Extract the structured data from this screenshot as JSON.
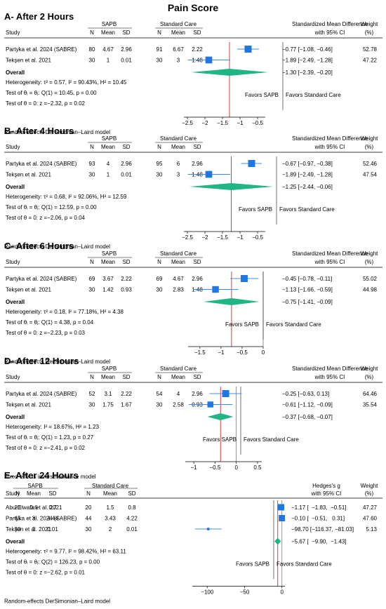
{
  "title": "Pain Score",
  "colors": {
    "square": "#1f77e0",
    "diamond": "#1fb584",
    "refline": "#d62728",
    "ci": "#3b8ee8",
    "divider": "#333333"
  },
  "chart_data": [
    {
      "type": "forest",
      "panel_title": "A- After 2 Hours",
      "group1_label": "SAPB",
      "group2_label": "Standard Care",
      "columns": {
        "study": "Study",
        "n": "N",
        "mean": "Mean",
        "sd": "SD",
        "effect1": "Standardized Mean Difference",
        "effect2": "with 95% CI",
        "weight1": "Weight",
        "weight2": "(%)"
      },
      "studies": [
        {
          "name": "Partyka et al. 2024 (SABRE)",
          "n1": "80",
          "m1": "4.67",
          "sd1": "2.96",
          "n2": "91",
          "m2": "6.67",
          "sd2": "2.22",
          "est": -0.77,
          "lo": -1.08,
          "hi": -0.46,
          "ci_text": "−0.77 [−1.08, −0.46]",
          "weight": "52.78"
        },
        {
          "name": "Tekşen et al. 2021",
          "n1": "30",
          "m1": "1",
          "sd1": "0.01",
          "n2": "30",
          "m2": "3",
          "sd2": "1.48",
          "est": -1.89,
          "lo": -2.49,
          "hi": -1.28,
          "ci_text": "−1.89 [−2.49, −1.28]",
          "weight": "47.22"
        }
      ],
      "overall": {
        "label": "Overall",
        "est": -1.3,
        "lo": -2.39,
        "hi": -0.2,
        "ci_text": "−1.30 [−2.39, −0.20]"
      },
      "stats": [
        "Heterogeneity: τ² = 0.57, I² = 90.43%, H² = 10.45",
        "Test of θᵢ = θⱼ: Q(1) = 10.45, p = 0.00",
        "Test of θ = 0: z =−2.32, p = 0.02"
      ],
      "favors_left": "Favors SAPB",
      "favors_right": "Favors Standard Care",
      "xticks": [
        -2.5,
        -2,
        -1.5,
        -1,
        -0.5
      ],
      "xtick_labels": [
        "−2.5",
        "−2",
        "−1.5",
        "−1",
        "−0.5"
      ],
      "xlim": [
        -2.6,
        -0.28
      ],
      "null_line": null,
      "model": "Random-effects DerSimonian–Laird model"
    },
    {
      "type": "forest",
      "panel_title": "B- After 4 Hours",
      "group1_label": "SAPB",
      "group2_label": "Standard Care",
      "columns": {
        "study": "Study",
        "n": "N",
        "mean": "Mean",
        "sd": "SD",
        "effect1": "Standardized Mean Difference",
        "effect2": "with 95% CI",
        "weight1": "Weight",
        "weight2": "(%)"
      },
      "studies": [
        {
          "name": "Partyka et al. 2024 (SABRE)",
          "n1": "93",
          "m1": "4",
          "sd1": "2.96",
          "n2": "95",
          "m2": "6",
          "sd2": "2.96",
          "est": -0.67,
          "lo": -0.97,
          "hi": -0.38,
          "ci_text": "−0.67 [−0.97, −0.38]",
          "weight": "52.46"
        },
        {
          "name": "Tekşen et al. 2021",
          "n1": "30",
          "m1": "1",
          "sd1": "0.01",
          "n2": "30",
          "m2": "3",
          "sd2": "1.48",
          "est": -1.89,
          "lo": -2.49,
          "hi": -1.28,
          "ci_text": "−1.89 [−2.49, −1.28]",
          "weight": "47.54"
        }
      ],
      "overall": {
        "label": "Overall",
        "est": -1.25,
        "lo": -2.44,
        "hi": -0.06,
        "ci_text": "−1.25 [−2.44, −0.06]"
      },
      "stats": [
        "Heterogeneity: τ² = 0.68, I² = 92.06%, H² = 12.59",
        "Test of θᵢ = θⱼ: Q(1) = 12.59, p = 0.00",
        "Test of θ = 0: z =−2.06, p = 0.04"
      ],
      "favors_left": "Favors SAPB",
      "favors_right": "Favors Standard Care",
      "xticks": [
        -2.5,
        -2,
        -1.5,
        -1,
        -0.5
      ],
      "xtick_labels": [
        "−2.5",
        "−2",
        "−1.5",
        "−1",
        "−0.5"
      ],
      "xlim": [
        -2.6,
        -0.28
      ],
      "null_line": null,
      "model": "Random-effects DerSimonian–Laird model"
    },
    {
      "type": "forest",
      "panel_title": "C- After 6 Hours",
      "group1_label": "SAPB",
      "group2_label": "Standard Care",
      "columns": {
        "study": "Study",
        "n": "N",
        "mean": "Mean",
        "sd": "SD",
        "effect1": "Standardized Mean Difference",
        "effect2": "with 95% CI",
        "weight1": "Weight",
        "weight2": "(%)"
      },
      "studies": [
        {
          "name": "Partyka et al. 2024 (SABRE)",
          "n1": "69",
          "m1": "3.67",
          "sd1": "2.22",
          "n2": "69",
          "m2": "4.67",
          "sd2": "2.96",
          "est": -0.45,
          "lo": -0.78,
          "hi": -0.11,
          "ci_text": "−0.45 [−0.78, −0.11]",
          "weight": "55.02"
        },
        {
          "name": "Tekşen et al. 2021",
          "n1": "30",
          "m1": "1.42",
          "sd1": "0.93",
          "n2": "30",
          "m2": "2.83",
          "sd2": "1.48",
          "est": -1.13,
          "lo": -1.66,
          "hi": -0.59,
          "ci_text": "−1.13 [−1.66, −0.59]",
          "weight": "44.98"
        }
      ],
      "overall": {
        "label": "Overall",
        "est": -0.75,
        "lo": -1.41,
        "hi": -0.09,
        "ci_text": "−0.75 [−1.41, −0.09]"
      },
      "stats": [
        "Heterogeneity: τ² = 0.18, I² = 77.18%, H² = 4.38",
        "Test of θᵢ = θⱼ: Q(1) = 4.38, p = 0.04",
        "Test of θ = 0: z =−2.23, p = 0.03"
      ],
      "favors_left": "Favors SAPB",
      "favors_right": "Favors Standard Care",
      "xticks": [
        -1.5,
        -1,
        -0.5,
        0
      ],
      "xtick_labels": [
        "−1.5",
        "−1",
        "−0.5",
        "0"
      ],
      "xlim": [
        -1.78,
        0.0
      ],
      "null_line": 0,
      "model": "Random-effects DerSimonian–Laird model"
    },
    {
      "type": "forest",
      "panel_title": "D- After 12 Hours",
      "group1_label": "SAPB",
      "group2_label": "Standard Care",
      "columns": {
        "study": "Study",
        "n": "N",
        "mean": "Mean",
        "sd": "SD",
        "effect1": "Standardized Mean Difference",
        "effect2": "with 95% CI",
        "weight1": "Weight",
        "weight2": "(%)"
      },
      "studies": [
        {
          "name": "Partyka et al. 2024 (SABRE)",
          "n1": "52",
          "m1": "3.1",
          "sd1": "2.22",
          "n2": "54",
          "m2": "4",
          "sd2": "2.96",
          "est": -0.25,
          "lo": -0.63,
          "hi": 0.13,
          "ci_text": "−0.25 [−0.63, 0.13]",
          "weight": "64.46"
        },
        {
          "name": "Tekşen et al. 2021",
          "n1": "30",
          "m1": "1.75",
          "sd1": "1.67",
          "n2": "30",
          "m2": "2.58",
          "sd2": "0.93",
          "est": -0.61,
          "lo": -1.12,
          "hi": -0.09,
          "ci_text": "−0.61 [−1.12, −0.09]",
          "weight": "35.54"
        }
      ],
      "overall": {
        "label": "Overall",
        "est": -0.37,
        "lo": -0.68,
        "hi": -0.07,
        "ci_text": "−0.37 [−0.68, −0.07]"
      },
      "stats": [
        "Heterogeneity: I² = 18.67%, H² = 1.23",
        "Test of θᵢ = θⱼ: Q(1) = 1.23, p = 0.27",
        "Test of θ = 0: z =−2.41, p = 0.02"
      ],
      "favors_left": "Favors SAPB",
      "favors_right": "Favors Standard Care",
      "xticks": [
        -1,
        -0.5,
        0,
        0.5
      ],
      "xtick_labels": [
        "−1",
        "−0.5",
        "0",
        "0.5"
      ],
      "xlim": [
        -1.2,
        0.6
      ],
      "null_line": 0,
      "model": "Fixed-effects inverse-variance model"
    },
    {
      "type": "forest",
      "panel_title": "E- After 24 Hours",
      "group1_label": "SAPB",
      "group2_label": "Standard Care",
      "columns": {
        "study": "Study",
        "n": "N",
        "mean": "Mean",
        "sd": "SD",
        "effect1": "Hedges's g",
        "effect2": "with 95% CI",
        "weight1": "Weight",
        "weight2": "(%)"
      },
      "studies": [
        {
          "name": "Abu-Elwafa et al. 2021",
          "n1": "20",
          "m1": "0.6",
          "sd1": "0.7",
          "n2": "20",
          "m2": "1.5",
          "sd2": "0.8",
          "est": -1.17,
          "lo": -1.83,
          "hi": -0.51,
          "ci_text": "−1.17 [  −1.83,  −0.51]",
          "weight": "47.27"
        },
        {
          "name": "Partyka et al. 2024 (SABRE)",
          "n1": "45",
          "m1": "3",
          "sd1": "4.44",
          "n2": "44",
          "m2": "3.43",
          "sd2": "4.22",
          "est": -0.1,
          "lo": -0.51,
          "hi": 0.31,
          "ci_text": "−0.10 [  −0.51,   0.31]",
          "weight": "47.60"
        },
        {
          "name": "Tekşen et al. 2021",
          "n1": "30",
          "m1": "1",
          "sd1": "0.01",
          "n2": "30",
          "m2": "2",
          "sd2": "0.01",
          "est": -98.7,
          "lo": -116.37,
          "hi": -81.03,
          "ci_text": "−98.70 [−116.37, −81.03]",
          "weight": "5.13"
        }
      ],
      "overall": {
        "label": "Overall",
        "est": -5.67,
        "lo": -9.9,
        "hi": -1.43,
        "ci_text": "−5.67 [  −9.90,  −1.43]"
      },
      "stats": [
        "Heterogeneity: τ² = 9.77, I² = 98.42%, H² = 63.11",
        "Test of θᵢ = θⱼ: Q(2) = 126.23, p = 0.00",
        "Test of θ = 0: z =−2.62, p = 0.01"
      ],
      "favors_left": "Favors SAPB",
      "favors_right": "Favors Standard Care",
      "xticks": [
        -100,
        -50,
        0
      ],
      "xtick_labels": [
        "−100",
        "−50",
        "0"
      ],
      "xlim": [
        -120,
        4
      ],
      "null_line": 0,
      "model": "Random-effects DerSimonian–Laird model"
    }
  ]
}
